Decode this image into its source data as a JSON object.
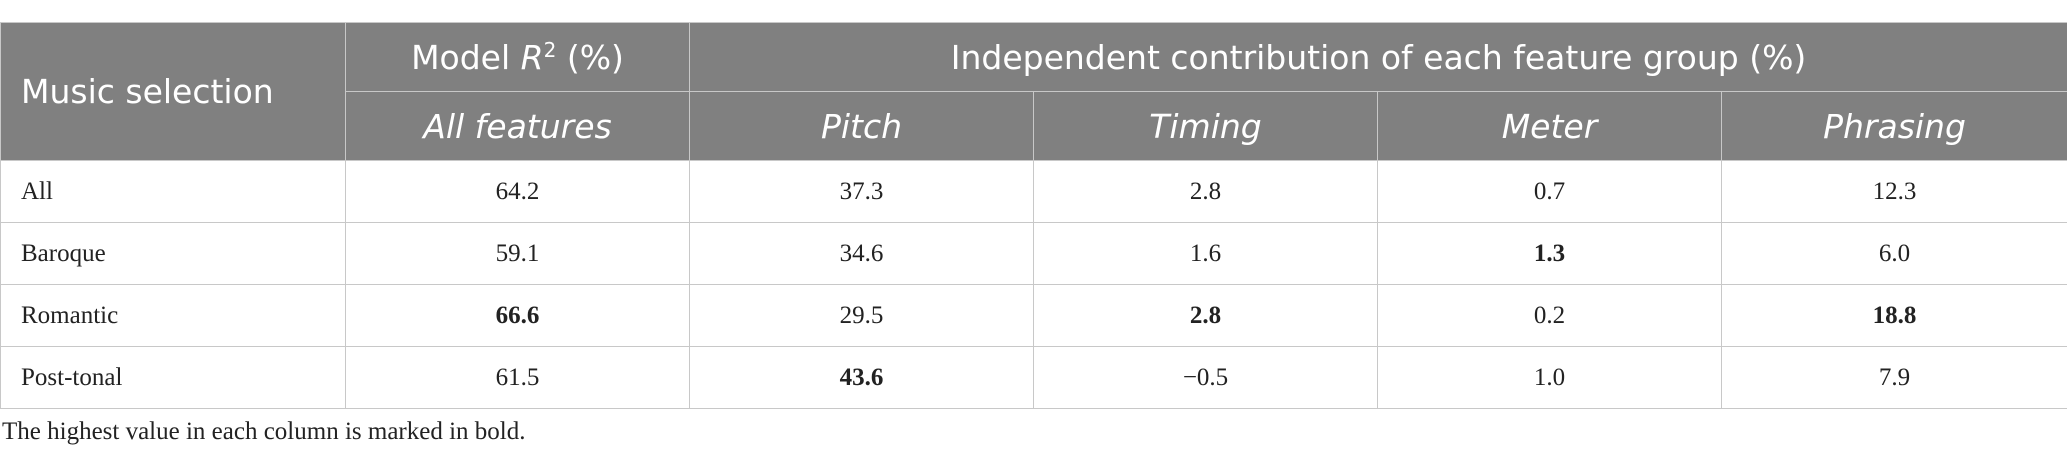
{
  "table": {
    "header": {
      "row_label": "Music selection",
      "model": {
        "prefix": "Model",
        "var": "R",
        "sup": "2",
        "suffix": "(%)"
      },
      "group": "Independent contribution of each feature group (%)",
      "columns": [
        "All features",
        "Pitch",
        "Timing",
        "Meter",
        "Phrasing"
      ]
    },
    "rows": [
      {
        "label": "All",
        "cells": [
          "64.2",
          "37.3",
          "2.8",
          "0.7",
          "12.3"
        ],
        "bold": [
          false,
          false,
          false,
          false,
          false
        ]
      },
      {
        "label": "Baroque",
        "cells": [
          "59.1",
          "34.6",
          "1.6",
          "1.3",
          "6.0"
        ],
        "bold": [
          false,
          false,
          false,
          true,
          false
        ]
      },
      {
        "label": "Romantic",
        "cells": [
          "66.6",
          "29.5",
          "2.8",
          "0.2",
          "18.8"
        ],
        "bold": [
          true,
          false,
          true,
          false,
          true
        ]
      },
      {
        "label": "Post-tonal",
        "cells": [
          "61.5",
          "43.6",
          "−0.5",
          "1.0",
          "7.9"
        ],
        "bold": [
          false,
          true,
          false,
          false,
          false
        ]
      }
    ]
  },
  "footnote": "The highest value in each column is marked in bold."
}
